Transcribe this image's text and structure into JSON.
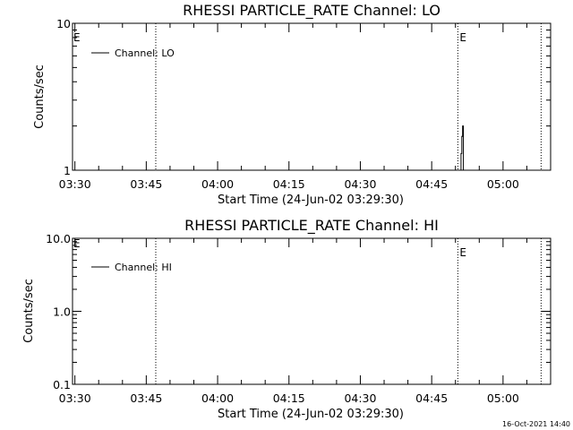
{
  "chart_data": [
    {
      "type": "line",
      "title": "RHESSI PARTICLE_RATE Channel: LO",
      "xlabel": "Start Time (24-Jun-02 03:29:30)",
      "ylabel": "Counts/sec",
      "y_scale": "log",
      "ylim": [
        1,
        10
      ],
      "y_ticks": [
        "1",
        "10"
      ],
      "xlim": [
        "03:29:30",
        "05:10:00"
      ],
      "x_ticks": [
        "03:30",
        "03:45",
        "04:00",
        "04:15",
        "04:30",
        "04:45",
        "05:00"
      ],
      "legend_position": "top-left",
      "series": [
        {
          "name": "Channel: LO",
          "points": [
            {
              "x": "04:51:00",
              "y": 1.0
            },
            {
              "x": "04:51:10",
              "y": 1.3
            },
            {
              "x": "04:51:20",
              "y": 1.7
            },
            {
              "x": "04:51:30",
              "y": 2.0
            },
            {
              "x": "04:51:40",
              "y": 1.0
            }
          ]
        }
      ],
      "events": [
        {
          "x": "03:47:00",
          "label": ""
        },
        {
          "x": "04:50:30",
          "label": "E"
        },
        {
          "x": "05:08:00",
          "label": ""
        }
      ],
      "left_edge_label": "E"
    },
    {
      "type": "line",
      "title": "RHESSI PARTICLE_RATE Channel: HI",
      "xlabel": "Start Time (24-Jun-02 03:29:30)",
      "ylabel": "Counts/sec",
      "y_scale": "log",
      "ylim": [
        0.1,
        10
      ],
      "y_ticks": [
        "0.1",
        "1.0",
        "10.0"
      ],
      "xlim": [
        "03:29:30",
        "05:10:00"
      ],
      "x_ticks": [
        "03:30",
        "03:45",
        "04:00",
        "04:15",
        "04:30",
        "04:45",
        "05:00"
      ],
      "legend_position": "top-left",
      "series": [
        {
          "name": "Channel: HI",
          "points": []
        }
      ],
      "events": [
        {
          "x": "03:47:00",
          "label": ""
        },
        {
          "x": "04:50:30",
          "label": "E"
        },
        {
          "x": "05:08:00",
          "label": ""
        }
      ],
      "left_edge_label": "E"
    }
  ],
  "timestamp": "16-Oct-2021 14:40"
}
